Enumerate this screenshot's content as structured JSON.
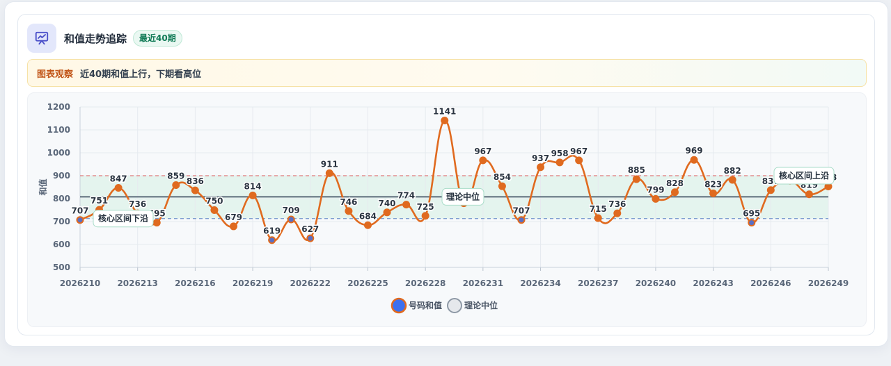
{
  "header": {
    "title": "和值走势追踪",
    "badge": "最近40期",
    "icon": "chart-board-icon"
  },
  "insight": {
    "label": "图表观察",
    "text": "近40期和值上行，下期看高位"
  },
  "colors": {
    "line": "#e06a1f",
    "point_fill": "#df6a20",
    "point_low_fill": "#5b6fc2",
    "band": "#e4f4ee",
    "upper_ref": "#e07a7a",
    "lower_ref": "#7f9fd0",
    "median": "#5c6b7a"
  },
  "chart_data": {
    "type": "line",
    "ylabel": "和值",
    "ylim": [
      500,
      1200
    ],
    "yticks": [
      500,
      600,
      700,
      800,
      900,
      1000,
      1100,
      1200
    ],
    "x": [
      "2026210",
      "2026211",
      "2026212",
      "2026213",
      "2026214",
      "2026215",
      "2026216",
      "2026217",
      "2026218",
      "2026219",
      "2026220",
      "2026221",
      "2026222",
      "2026223",
      "2026224",
      "2026225",
      "2026226",
      "2026227",
      "2026228",
      "2026229",
      "2026230",
      "2026231",
      "2026232",
      "2026233",
      "2026234",
      "2026235",
      "2026236",
      "2026237",
      "2026238",
      "2026239",
      "2026240",
      "2026241",
      "2026242",
      "2026243",
      "2026244",
      "2026245",
      "2026246",
      "2026247",
      "2026248",
      "2026249"
    ],
    "xtick_labels": [
      "2026210",
      "2026213",
      "2026216",
      "2026219",
      "2026222",
      "2026225",
      "2026228",
      "2026231",
      "2026234",
      "2026237",
      "2026240",
      "2026243",
      "2026246",
      "2026249"
    ],
    "series": [
      {
        "name": "号码和值",
        "values": [
          707,
          751,
          847,
          736,
          695,
          859,
          836,
          750,
          679,
          814,
          619,
          709,
          627,
          911,
          746,
          684,
          740,
          774,
          725,
          1141,
          780,
          967,
          854,
          707,
          937,
          958,
          967,
          715,
          736,
          885,
          799,
          828,
          969,
          823,
          882,
          695,
          837,
          878,
          819,
          853
        ]
      }
    ],
    "low_points": [
      "2026210",
      "2026220",
      "2026221",
      "2026222",
      "2026233",
      "2026245"
    ],
    "reference_lines": [
      {
        "name": "理论中位",
        "value": 808
      },
      {
        "name": "核心区间下沿",
        "value": 713
      },
      {
        "name": "核心区间上沿",
        "value": 900
      }
    ],
    "band": [
      713,
      900
    ],
    "legend": [
      {
        "name": "号码和值"
      },
      {
        "name": "理论中位"
      }
    ],
    "legend_position": "bottom",
    "grid": true
  }
}
